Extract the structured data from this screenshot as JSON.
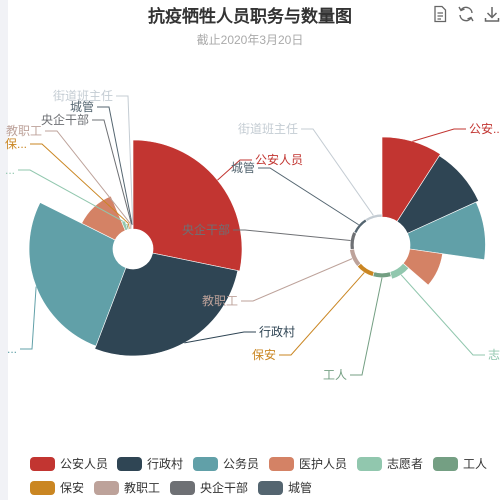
{
  "header": {
    "title": "抗疫牺牲人员职务与数量图",
    "subtitle": "截止2020年3月20日"
  },
  "toolbox": [
    "data-view-icon",
    "restore-icon",
    "save-image-icon"
  ],
  "colors": {
    "公安人员": "#c23531",
    "行政村": "#2f4554",
    "公务员": "#61a0a8",
    "医护人员": "#d48265",
    "志愿者": "#91c7ae",
    "工人": "#749f83",
    "保安": "#ca8622",
    "教职工": "#bda29a",
    "央企干部": "#6e7074",
    "城管": "#546570",
    "街道班主任": "#c4ccd3"
  },
  "chart_data": [
    {
      "type": "pie",
      "variant": "rose-radius",
      "note_order": "clockwise from top",
      "slices": [
        {
          "name": "公安人员",
          "value": 85
        },
        {
          "name": "行政村",
          "value": 83
        },
        {
          "name": "公务员",
          "value": 80
        },
        {
          "name": "医护人员",
          "value": 34
        },
        {
          "name": "志愿者",
          "value": 6
        },
        {
          "name": "工人",
          "value": 3
        },
        {
          "name": "保安",
          "value": 3
        },
        {
          "name": "教职工",
          "value": 3
        },
        {
          "name": "央企干部",
          "value": 2
        },
        {
          "name": "城管",
          "value": 1
        },
        {
          "name": "街道班主任",
          "value": 1
        }
      ],
      "labels": {
        "公安人员": "公安人员",
        "行政村": "行政村",
        "公务员": "...",
        "医护人员": "",
        "志愿者": "...",
        "工人": "",
        "保安": "保...",
        "教职工": "教职工",
        "央企干部": "央企干部",
        "城管": "城管",
        "街道班主任": "街道班主任"
      }
    },
    {
      "type": "pie",
      "variant": "rose-area",
      "note_order": "clockwise from top",
      "slices": [
        {
          "name": "公安人员",
          "value": 85
        },
        {
          "name": "行政村",
          "value": 83
        },
        {
          "name": "公务员",
          "value": 80
        },
        {
          "name": "医护人员",
          "value": 34
        },
        {
          "name": "志愿者",
          "value": 6
        },
        {
          "name": "工人",
          "value": 3
        },
        {
          "name": "保安",
          "value": 3
        },
        {
          "name": "教职工",
          "value": 3
        },
        {
          "name": "央企干部",
          "value": 2
        },
        {
          "name": "城管",
          "value": 1
        },
        {
          "name": "街道班主任",
          "value": 1
        }
      ],
      "labels": {
        "公安人员": "公安...",
        "行政村": "",
        "公务员": "",
        "医护人员": "",
        "志愿者": "志...",
        "工人": "工人",
        "保安": "保安",
        "教职工": "教职工",
        "央企干部": "央企干部",
        "城管": "城管",
        "街道班主任": "街道班主任"
      }
    }
  ],
  "legend": {
    "items": [
      "公安人员",
      "行政村",
      "公务员",
      "医护人员",
      "志愿者",
      "工人",
      "保安",
      "教职工",
      "央企干部",
      "城管"
    ]
  }
}
